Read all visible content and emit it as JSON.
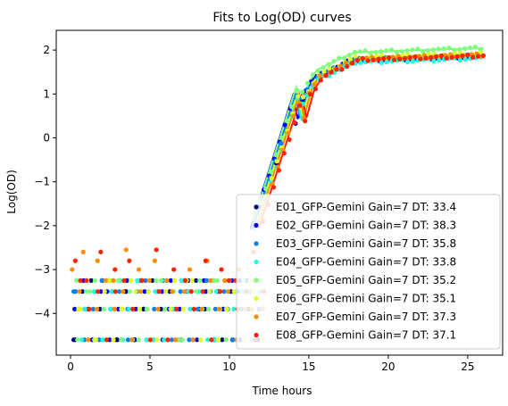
{
  "chart_data": {
    "type": "scatter",
    "title": "Fits to Log(OD) curves",
    "xlabel": "Time hours",
    "ylabel": "Log(OD)",
    "xlim": [
      -0.9,
      27.2
    ],
    "ylim": [
      -4.95,
      2.45
    ],
    "x_ticks": [
      0,
      5,
      10,
      15,
      20,
      25
    ],
    "y_ticks": [
      -4,
      -3,
      -2,
      -1,
      0,
      1,
      2
    ],
    "legend_position": "lower right",
    "grid": false,
    "series": [
      {
        "name": "E01_GFP-Gemini Gain=7 DT: 33.4",
        "color": "#00007f",
        "fit_shift": -0.06,
        "fit_offset": -0.05,
        "low_x": [
          0.3,
          1.1,
          2.0,
          2.9,
          3.4,
          4.6,
          5.8,
          7.2,
          8.1,
          9.3,
          10.2,
          11.0
        ],
        "low_y": [
          -4.6,
          -3.9,
          -3.25,
          -4.6,
          -3.5,
          -3.9,
          -4.6,
          -3.25,
          -3.9,
          -3.5,
          -4.6,
          -3.9
        ]
      },
      {
        "name": "E02_GFP-Gemini Gain=7 DT: 38.3",
        "color": "#0000ff",
        "fit_shift": -0.3,
        "fit_offset": -0.04,
        "low_x": [
          0.5,
          1.4,
          2.3,
          3.1,
          4.0,
          4.9,
          6.2,
          7.0,
          8.4,
          9.6,
          10.5,
          11.1
        ],
        "low_y": [
          -3.9,
          -4.6,
          -3.5,
          -3.25,
          -4.6,
          -3.5,
          -3.9,
          -4.6,
          -3.25,
          -3.9,
          -3.5,
          -3.25
        ]
      },
      {
        "name": "E03_GFP-Gemini Gain=7 DT: 35.8",
        "color": "#007fff",
        "fit_shift": -0.15,
        "fit_offset": -0.02,
        "low_x": [
          0.2,
          0.9,
          1.8,
          2.6,
          3.6,
          4.4,
          5.5,
          6.6,
          7.7,
          8.8,
          9.9,
          10.8
        ],
        "low_y": [
          -3.5,
          -3.9,
          -4.6,
          -3.5,
          -3.9,
          -3.25,
          -3.5,
          -3.9,
          -4.6,
          -3.5,
          -3.9,
          -3.5
        ]
      },
      {
        "name": "E04_GFP-Gemini Gain=7 DT: 33.8",
        "color": "#1fffdf",
        "fit_shift": -0.05,
        "fit_offset": -0.08,
        "low_x": [
          0.7,
          1.6,
          2.5,
          3.3,
          4.2,
          5.2,
          6.0,
          7.4,
          8.3,
          9.1,
          10.0,
          11.2
        ],
        "low_y": [
          -4.6,
          -3.5,
          -3.9,
          -4.6,
          -3.25,
          -4.6,
          -3.25,
          -3.5,
          -3.9,
          -4.6,
          -3.25,
          -3.5
        ]
      },
      {
        "name": "E05_GFP-Gemini Gain=7 DT: 35.2",
        "color": "#7fff7f",
        "fit_shift": -0.1,
        "fit_offset": 0.15,
        "low_x": [
          0.4,
          1.2,
          2.1,
          3.0,
          3.9,
          4.8,
          5.7,
          6.8,
          7.9,
          9.0,
          9.8,
          10.9
        ],
        "low_y": [
          -3.25,
          -3.5,
          -3.9,
          -3.25,
          -4.6,
          -3.9,
          -3.25,
          -4.6,
          -3.5,
          -3.25,
          -3.9,
          -4.6
        ]
      },
      {
        "name": "E06_GFP-Gemini Gain=7 DT: 35.1",
        "color": "#dfff1f",
        "fit_shift": 0.0,
        "fit_offset": 0.03,
        "low_x": [
          0.6,
          1.5,
          2.4,
          3.2,
          4.1,
          5.0,
          6.3,
          7.3,
          8.2,
          9.4,
          10.3,
          11.3
        ],
        "low_y": [
          -3.9,
          -4.6,
          -3.25,
          -3.9,
          -3.5,
          -4.6,
          -3.9,
          -3.25,
          -4.6,
          -3.9,
          -3.5,
          -3.25
        ]
      },
      {
        "name": "E07_GFP-Gemini Gain=7 DT: 37.3",
        "color": "#ff8c00",
        "fit_shift": 0.1,
        "fit_offset": 0.0,
        "low_x": [
          0.1,
          0.8,
          1.7,
          2.7,
          3.5,
          4.3,
          5.3,
          6.4,
          7.5,
          8.6,
          9.7,
          10.6,
          11.4
        ],
        "low_y": [
          -3.0,
          -2.6,
          -2.8,
          -3.25,
          -2.55,
          -3.0,
          -2.8,
          -3.5,
          -3.0,
          -2.8,
          -3.25,
          -3.0,
          -3.9
        ]
      },
      {
        "name": "E08_GFP-Gemini Gain=7 DT: 37.1",
        "color": "#ff2200",
        "fit_shift": 0.25,
        "fit_offset": -0.02,
        "low_x": [
          0.3,
          1.0,
          1.9,
          2.8,
          3.7,
          4.5,
          5.4,
          6.5,
          7.6,
          8.5,
          9.5,
          10.4,
          11.5
        ],
        "low_y": [
          -2.8,
          -3.25,
          -2.6,
          -3.0,
          -2.8,
          -3.25,
          -2.55,
          -3.0,
          -3.5,
          -2.8,
          -3.0,
          -3.25,
          -2.6
        ]
      }
    ]
  }
}
